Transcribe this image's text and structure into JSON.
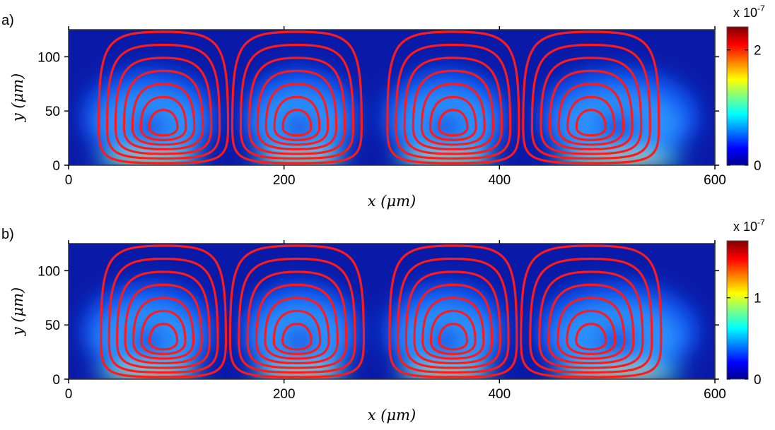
{
  "chart_data": [
    {
      "panel_label": "a)",
      "type": "heatmap",
      "overlay": "streamlines",
      "xlabel": "x (μm)",
      "ylabel": "y (μm)",
      "xlim": [
        0,
        600
      ],
      "ylim": [
        0,
        125
      ],
      "xticks": [
        0,
        200,
        400,
        600
      ],
      "yticks": [
        0,
        50,
        100
      ],
      "colorbar": {
        "colormap": "jet",
        "range": [
          0,
          2.4
        ],
        "ticks": [
          0,
          2
        ],
        "scale_label": "x 10-7",
        "scale_base": "x 10",
        "scale_exp": "-7"
      },
      "vortices": [
        {
          "x_center": 88,
          "y_center": 35
        },
        {
          "x_center": 212,
          "y_center": 35
        },
        {
          "x_center": 357,
          "y_center": 35
        },
        {
          "x_center": 485,
          "y_center": 35
        }
      ],
      "cell_boundaries": [
        150,
        280,
        420
      ],
      "streamline_color": "#ff1a1a"
    },
    {
      "panel_label": "b)",
      "type": "heatmap",
      "overlay": "streamlines",
      "xlabel": "x (μm)",
      "ylabel": "y (μm)",
      "xlim": [
        0,
        600
      ],
      "ylim": [
        0,
        125
      ],
      "xticks": [
        0,
        200,
        400,
        600
      ],
      "yticks": [
        0,
        50,
        100
      ],
      "colorbar": {
        "colormap": "jet",
        "range": [
          0,
          1.7
        ],
        "ticks": [
          0,
          1
        ],
        "scale_label": "x 10-7",
        "scale_base": "x 10",
        "scale_exp": "-7"
      },
      "vortices": [
        {
          "x_center": 88,
          "y_center": 35
        },
        {
          "x_center": 212,
          "y_center": 35
        },
        {
          "x_center": 357,
          "y_center": 35
        },
        {
          "x_center": 485,
          "y_center": 35
        }
      ],
      "cell_boundaries": [
        148,
        282,
        418
      ],
      "streamline_color": "#ff1a1a"
    }
  ]
}
